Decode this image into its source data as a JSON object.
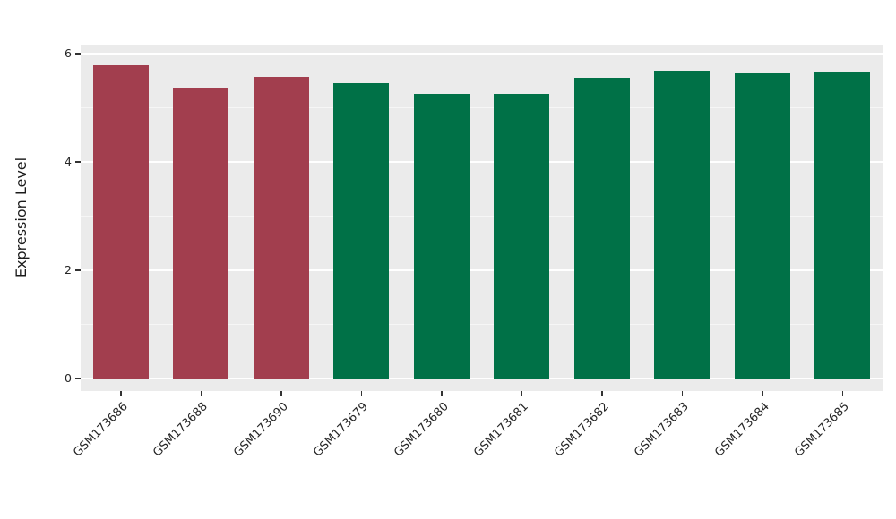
{
  "chart_data": {
    "type": "bar",
    "title": "",
    "xlabel": "",
    "ylabel": "Expression Level",
    "categories": [
      "GSM173686",
      "GSM173688",
      "GSM173690",
      "GSM173679",
      "GSM173680",
      "GSM173681",
      "GSM173682",
      "GSM173683",
      "GSM173684",
      "GSM173685"
    ],
    "values": [
      5.78,
      5.38,
      5.57,
      5.45,
      5.26,
      5.26,
      5.55,
      5.68,
      5.63,
      5.66
    ],
    "bar_colors": [
      "#A23E4E",
      "#A23E4E",
      "#A23E4E",
      "#007147",
      "#007147",
      "#007147",
      "#007147",
      "#007147",
      "#007147",
      "#007147"
    ],
    "group_colors": {
      "maroon": "#A23E4E",
      "green": "#007147"
    },
    "yticks": [
      0,
      2,
      4,
      6
    ],
    "minor_yticks": [
      1,
      3,
      5
    ],
    "ylim": [
      0,
      6.2
    ],
    "panel_background": "#EBEBEB",
    "gridline_color": "#FFFFFF",
    "grid": "on",
    "legend": "none"
  }
}
